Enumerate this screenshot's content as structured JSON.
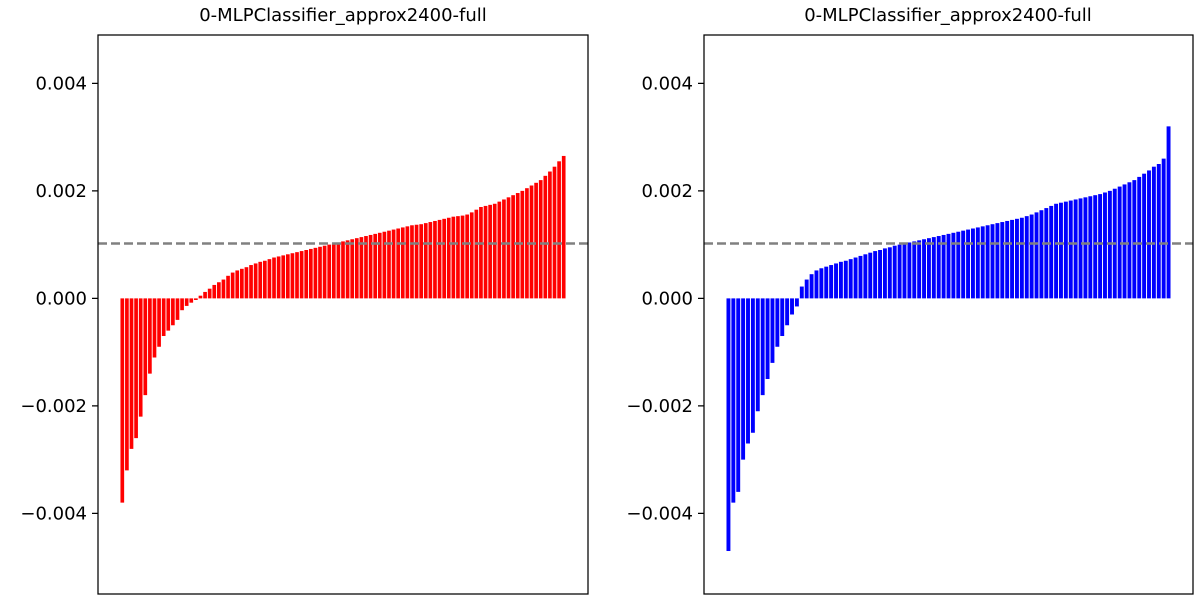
{
  "chart_data": [
    {
      "type": "bar",
      "title": "0-MLPClassifier_approx2400-full",
      "xlabel": "",
      "ylabel": "",
      "ylim": [
        -0.0055,
        0.0049
      ],
      "yticks": [
        -0.004,
        -0.002,
        0.0,
        0.002,
        0.004
      ],
      "ytick_labels": [
        "−0.004",
        "−0.002",
        "0.000",
        "0.002",
        "0.004"
      ],
      "show_xticks": false,
      "grid": false,
      "bar_color": "#ff0000",
      "reference_line": {
        "y": 0.00102,
        "style": "dashed",
        "color": "#808080"
      },
      "values": [
        -0.0038,
        -0.0032,
        -0.0028,
        -0.0026,
        -0.0022,
        -0.0018,
        -0.0014,
        -0.0011,
        -0.0009,
        -0.0007,
        -0.0006,
        -0.0005,
        -0.0004,
        -0.00022,
        -0.00014,
        -8e-05,
        -3e-05,
        5e-05,
        0.00012,
        0.00018,
        0.00025,
        0.0003,
        0.00035,
        0.00042,
        0.00048,
        0.00052,
        0.00055,
        0.00058,
        0.00062,
        0.00065,
        0.00068,
        0.0007,
        0.00073,
        0.00076,
        0.00078,
        0.0008,
        0.00082,
        0.00084,
        0.00086,
        0.00088,
        0.0009,
        0.00092,
        0.00094,
        0.00096,
        0.00098,
        0.001,
        0.00102,
        0.00104,
        0.00106,
        0.00108,
        0.0011,
        0.00112,
        0.00114,
        0.00116,
        0.00118,
        0.0012,
        0.00122,
        0.00124,
        0.00126,
        0.00128,
        0.0013,
        0.00132,
        0.00134,
        0.00136,
        0.00137,
        0.00138,
        0.0014,
        0.00142,
        0.00144,
        0.00146,
        0.00148,
        0.0015,
        0.00152,
        0.00153,
        0.00154,
        0.00156,
        0.0016,
        0.00165,
        0.0017,
        0.00172,
        0.00174,
        0.00176,
        0.0018,
        0.00184,
        0.00188,
        0.00192,
        0.00196,
        0.002,
        0.00205,
        0.0021,
        0.00215,
        0.0022,
        0.00228,
        0.00236,
        0.00245,
        0.00255,
        0.00265
      ]
    },
    {
      "type": "bar",
      "title": "0-MLPClassifier_approx2400-full",
      "xlabel": "",
      "ylabel": "",
      "ylim": [
        -0.0055,
        0.0049
      ],
      "yticks": [
        -0.004,
        -0.002,
        0.0,
        0.002,
        0.004
      ],
      "ytick_labels": [
        "−0.004",
        "−0.002",
        "0.000",
        "0.002",
        "0.004"
      ],
      "show_xticks": false,
      "grid": false,
      "bar_color": "#0000ff",
      "reference_line": {
        "y": 0.00102,
        "style": "dashed",
        "color": "#808080"
      },
      "values": [
        -0.0047,
        -0.0038,
        -0.0036,
        -0.003,
        -0.0027,
        -0.0025,
        -0.0021,
        -0.0018,
        -0.0015,
        -0.0012,
        -0.0009,
        -0.0007,
        -0.0005,
        -0.0003,
        -0.00015,
        0.00022,
        0.00035,
        0.00045,
        0.00052,
        0.00056,
        0.00059,
        0.00062,
        0.00065,
        0.00068,
        0.0007,
        0.00073,
        0.00076,
        0.00079,
        0.00082,
        0.00085,
        0.00088,
        0.0009,
        0.00093,
        0.00095,
        0.00098,
        0.001,
        0.00102,
        0.00104,
        0.00106,
        0.00108,
        0.0011,
        0.00112,
        0.00114,
        0.00116,
        0.00118,
        0.0012,
        0.00122,
        0.00124,
        0.00126,
        0.00128,
        0.0013,
        0.00132,
        0.00134,
        0.00136,
        0.00138,
        0.0014,
        0.00142,
        0.00144,
        0.00146,
        0.00148,
        0.0015,
        0.00153,
        0.00156,
        0.0016,
        0.00164,
        0.00168,
        0.00172,
        0.00176,
        0.00178,
        0.0018,
        0.00182,
        0.00184,
        0.00186,
        0.00188,
        0.0019,
        0.00192,
        0.00194,
        0.00197,
        0.002,
        0.00204,
        0.00208,
        0.00212,
        0.00216,
        0.0022,
        0.00226,
        0.00232,
        0.00238,
        0.00245,
        0.0025,
        0.0026,
        0.0032
      ]
    }
  ]
}
